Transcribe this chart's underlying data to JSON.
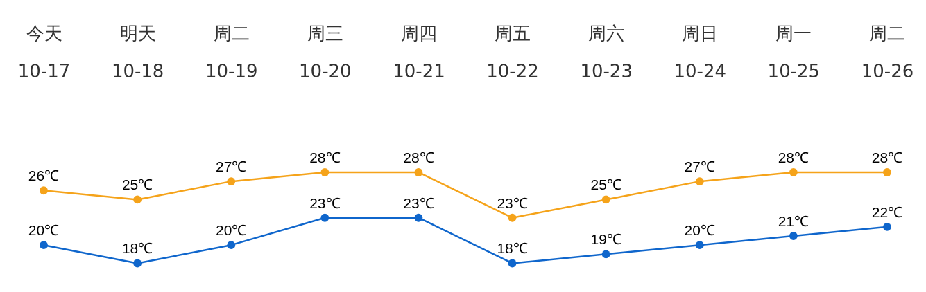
{
  "chart_data": {
    "type": "line",
    "categories": [
      "今天\n10-17",
      "明天\n10-18",
      "周二\n10-19",
      "周三\n10-20",
      "周四\n10-21",
      "周五\n10-22",
      "周六\n10-23",
      "周日\n10-24",
      "周一\n10-25",
      "周二\n10-26"
    ],
    "series": [
      {
        "color": "#f5a31a",
        "values": [
          26,
          25,
          27,
          28,
          28,
          23,
          25,
          27,
          28,
          28
        ],
        "value_labels": [
          "26℃",
          "25℃",
          "27℃",
          "28℃",
          "28℃",
          "23℃",
          "25℃",
          "27℃",
          "28℃",
          "28℃"
        ]
      },
      {
        "color": "#0f66cc",
        "values": [
          20,
          18,
          20,
          23,
          23,
          18,
          19,
          20,
          21,
          22
        ],
        "value_labels": [
          "20℃",
          "18℃",
          "20℃",
          "23℃",
          "23℃",
          "18℃",
          "19℃",
          "20℃",
          "21℃",
          "22℃"
        ]
      }
    ],
    "marker": "circle",
    "line_style": "solid"
  }
}
